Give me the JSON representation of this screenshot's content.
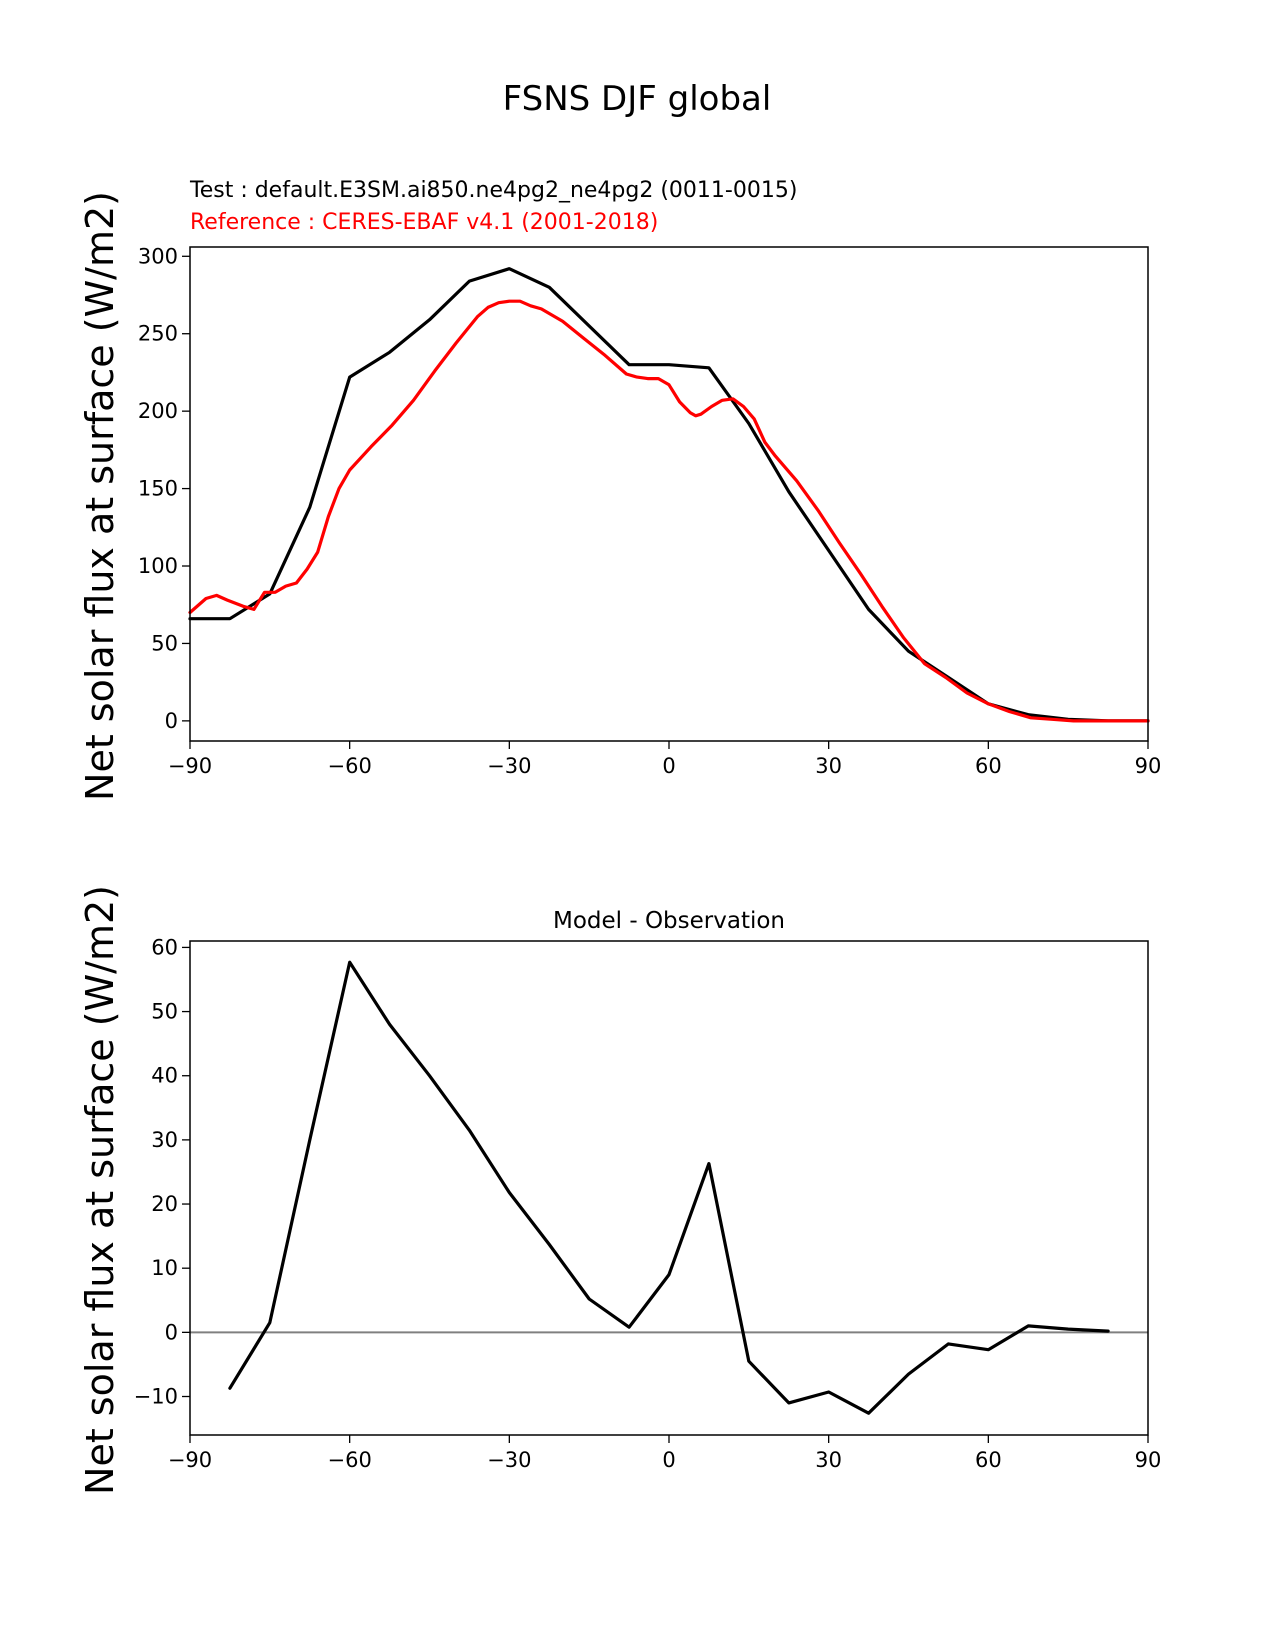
{
  "figure": {
    "title": "FSNS DJF global"
  },
  "chart_data": [
    {
      "type": "line",
      "subtitle_test": "Test : default.E3SM.ai850.ne4pg2_ne4pg2 (0011-0015)",
      "subtitle_ref": "Reference : CERES-EBAF v4.1 (2001-2018)",
      "ylabel": "Net solar flux at surface (W/m2)",
      "xlabel": "",
      "xlim": [
        -90,
        90
      ],
      "ylim": [
        -13,
        306
      ],
      "xticks": [
        -90,
        -60,
        -30,
        0,
        30,
        60,
        90
      ],
      "xtick_labels": [
        "−90",
        "−60",
        "−30",
        "0",
        "30",
        "60",
        "90"
      ],
      "yticks": [
        0,
        50,
        100,
        150,
        200,
        250,
        300
      ],
      "ytick_labels": [
        "0",
        "50",
        "100",
        "150",
        "200",
        "250",
        "300"
      ],
      "colors": {
        "test": "#000000",
        "reference": "#ff0000"
      },
      "series": [
        {
          "name": "Test",
          "color": "#000000",
          "x": [
            -90,
            -82.5,
            -75,
            -67.5,
            -60,
            -52.5,
            -45,
            -37.5,
            -30,
            -22.5,
            -15,
            -7.5,
            0,
            7.5,
            15,
            22.5,
            30,
            37.5,
            45,
            52.5,
            60,
            67.5,
            75,
            82.5,
            90
          ],
          "y": [
            66,
            66,
            82,
            138,
            222,
            238,
            259,
            284,
            292,
            280,
            255,
            230,
            230,
            228,
            192,
            148,
            110,
            72,
            45,
            28,
            11,
            4,
            1,
            0,
            0
          ]
        },
        {
          "name": "Reference",
          "color": "#ff0000",
          "x": [
            -90,
            -87,
            -85,
            -83,
            -80,
            -78,
            -76,
            -74,
            -72,
            -70,
            -68,
            -66,
            -64,
            -62,
            -60,
            -56,
            -52,
            -48,
            -44,
            -40,
            -36,
            -34,
            -32,
            -30,
            -28,
            -26,
            -24,
            -20,
            -16,
            -12,
            -8,
            -6,
            -4,
            -2,
            0,
            2,
            4,
            5,
            6,
            8,
            10,
            12,
            14,
            16,
            18,
            20,
            24,
            28,
            32,
            36,
            40,
            44,
            48,
            52,
            56,
            60,
            64,
            68,
            72,
            76,
            80,
            84,
            90
          ],
          "y": [
            70,
            79,
            81,
            78,
            74,
            72,
            83,
            83,
            87,
            89,
            98,
            109,
            132,
            150,
            162,
            177,
            191,
            207,
            226,
            244,
            261,
            267,
            270,
            271,
            271,
            268,
            266,
            258,
            247,
            236,
            224,
            222,
            221,
            221,
            217,
            206,
            199,
            197,
            198,
            203,
            207,
            208,
            203,
            195,
            180,
            171,
            155,
            136,
            115,
            95,
            74,
            54,
            37,
            28,
            18,
            11,
            6,
            2,
            1,
            0,
            0,
            0,
            0
          ]
        }
      ]
    },
    {
      "type": "line",
      "title": "Model - Observation",
      "ylabel": "Net solar flux at surface (W/m2)",
      "xlabel": "",
      "xlim": [
        -90,
        90
      ],
      "ylim": [
        -16,
        61
      ],
      "xticks": [
        -90,
        -60,
        -30,
        0,
        30,
        60,
        90
      ],
      "xtick_labels": [
        "−90",
        "−60",
        "−30",
        "0",
        "30",
        "60",
        "90"
      ],
      "yticks": [
        -10,
        0,
        10,
        20,
        30,
        40,
        50,
        60
      ],
      "ytick_labels": [
        "−10",
        "0",
        "10",
        "20",
        "30",
        "40",
        "50",
        "60"
      ],
      "zero_line_color": "#808080",
      "series": [
        {
          "name": "Model - Observation",
          "color": "#000000",
          "x": [
            -82.5,
            -75,
            -67.5,
            -60,
            -52.5,
            -45,
            -37.5,
            -30,
            -22.5,
            -15,
            -7.5,
            0,
            7.5,
            15,
            22.5,
            30,
            37.5,
            45,
            52.5,
            60,
            67.5,
            75,
            82.5
          ],
          "y": [
            -8.7,
            1.5,
            30,
            57.7,
            48,
            40,
            31.5,
            21.8,
            13.7,
            5.2,
            0.8,
            9,
            26.3,
            -4.5,
            -11,
            -9.3,
            -12.6,
            -6.5,
            -1.8,
            -2.7,
            1,
            0.5,
            0.2
          ]
        }
      ]
    }
  ]
}
